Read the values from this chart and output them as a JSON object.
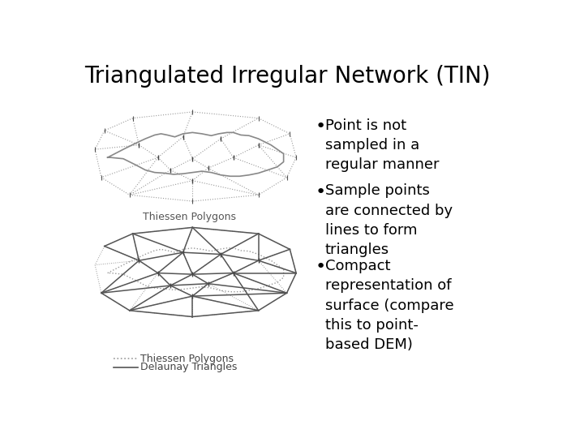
{
  "title": "Triangulated Irregular Network (TIN)",
  "title_fontsize": 20,
  "background_color": "#ffffff",
  "bullet_points": [
    "Point is not\nsampled in a\nregular manner",
    "Sample points\nare connected by\nlines to form\ntriangles",
    "Compact\nrepresentation of\nsurface (compare\nthis to point-\nbased DEM)"
  ],
  "bullet_fontsize": 13,
  "label_thiessen_top": "Thiessen Polygons",
  "label_thiessen_bottom": "Thiessen Polygons",
  "label_delaunay": "Delaunay Triangles",
  "label_fontsize": 9,
  "line_color": "#555555",
  "dot_color": "#999999",
  "blob_color": "#888888",
  "text_color": "#333333"
}
